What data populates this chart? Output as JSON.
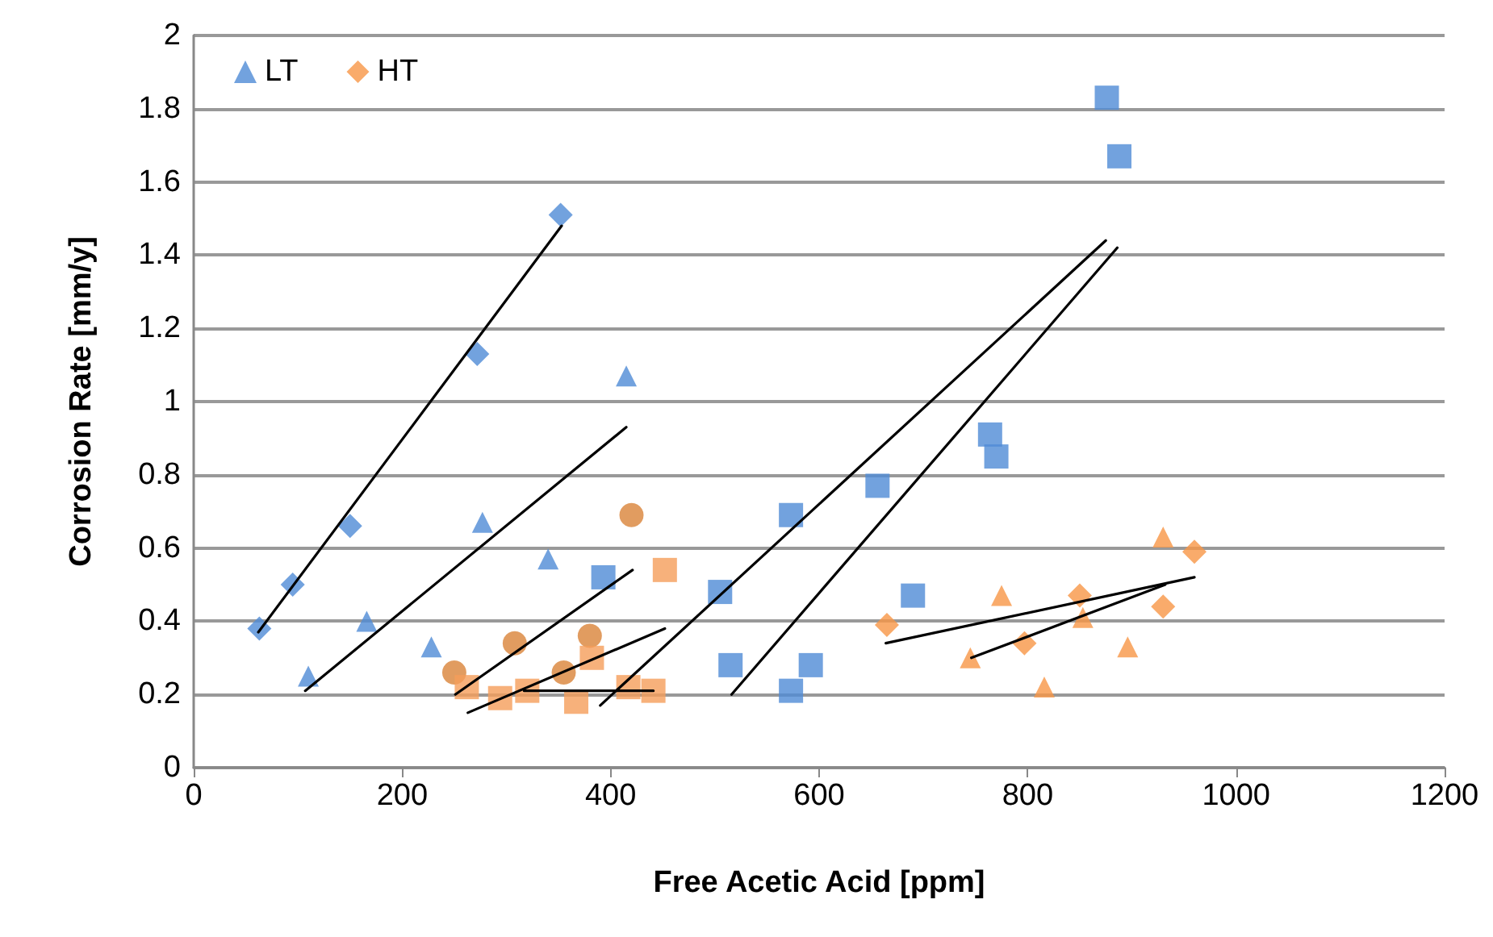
{
  "chart_data": {
    "type": "scatter",
    "xlabel": "Free Acetic Acid [ppm]",
    "ylabel": "Corrosion Rate [mm/y]",
    "xlim": [
      0,
      1200
    ],
    "xticks": [
      0,
      200,
      400,
      600,
      800,
      1000,
      1200
    ],
    "ylim": [
      0,
      2
    ],
    "yticks": [
      0,
      0.2,
      0.4,
      0.6,
      0.8,
      1,
      1.2,
      1.4,
      1.6,
      1.8,
      2
    ],
    "grid": "y",
    "legend": "top left",
    "series": [
      {
        "color": "#4f8bd6",
        "marker": "diamond",
        "x": [
          63,
          95,
          150,
          272,
          352
        ],
        "values": [
          0.38,
          0.5,
          0.66,
          1.13,
          1.51
        ]
      },
      {
        "name": "LT",
        "color": "#4f8bd6",
        "marker": "triangle",
        "x": [
          110,
          166,
          228,
          277,
          340,
          415
        ],
        "values": [
          0.25,
          0.4,
          0.33,
          0.67,
          0.57,
          1.07
        ]
      },
      {
        "color": "#4f8bd6",
        "marker": "square",
        "x": [
          393,
          505,
          515,
          573,
          573,
          592,
          656,
          690,
          764,
          770,
          876,
          888
        ],
        "values": [
          0.52,
          0.48,
          0.28,
          0.69,
          0.21,
          0.28,
          0.77,
          0.47,
          0.91,
          0.85,
          1.83,
          1.67
        ]
      },
      {
        "color": "#da8338",
        "marker": "circle",
        "x": [
          250,
          308,
          355,
          380,
          420
        ],
        "values": [
          0.26,
          0.34,
          0.26,
          0.36,
          0.69
        ]
      },
      {
        "color": "#f59d5a",
        "marker": "square",
        "x": [
          262,
          294,
          320,
          367,
          382,
          417,
          441,
          452
        ],
        "values": [
          0.22,
          0.19,
          0.21,
          0.18,
          0.3,
          0.22,
          0.21,
          0.54
        ]
      },
      {
        "name": "HT",
        "color": "#f79646",
        "marker": "diamond",
        "x": [
          665,
          797,
          850,
          930,
          960
        ],
        "values": [
          0.39,
          0.34,
          0.47,
          0.44,
          0.59
        ]
      },
      {
        "color": "#f79646",
        "marker": "triangle",
        "x": [
          745,
          775,
          816,
          853,
          896,
          930
        ],
        "values": [
          0.3,
          0.47,
          0.22,
          0.41,
          0.33,
          0.63
        ]
      },
      {
        "type": "line",
        "color": "#000000",
        "marker": "none",
        "x": [
          62,
          353
        ],
        "values": [
          0.37,
          1.48
        ]
      },
      {
        "type": "line",
        "color": "#000000",
        "marker": "none",
        "x": [
          107,
          415
        ],
        "values": [
          0.21,
          0.93
        ]
      },
      {
        "type": "line",
        "color": "#000000",
        "marker": "none",
        "x": [
          251,
          421
        ],
        "values": [
          0.2,
          0.54
        ]
      },
      {
        "type": "line",
        "color": "#000000",
        "marker": "none",
        "x": [
          263,
          452
        ],
        "values": [
          0.15,
          0.38
        ]
      },
      {
        "type": "line",
        "color": "#000000",
        "marker": "none",
        "x": [
          317,
          441
        ],
        "values": [
          0.21,
          0.21
        ]
      },
      {
        "type": "line",
        "color": "#000000",
        "marker": "none",
        "x": [
          390,
          875
        ],
        "values": [
          0.17,
          1.44
        ]
      },
      {
        "type": "line",
        "color": "#000000",
        "marker": "none",
        "x": [
          516,
          886
        ],
        "values": [
          0.2,
          1.42
        ]
      },
      {
        "type": "line",
        "color": "#000000",
        "marker": "none",
        "x": [
          664,
          960
        ],
        "values": [
          0.34,
          0.52
        ]
      },
      {
        "type": "line",
        "color": "#000000",
        "marker": "none",
        "x": [
          746,
          932
        ],
        "values": [
          0.3,
          0.5
        ]
      }
    ]
  }
}
